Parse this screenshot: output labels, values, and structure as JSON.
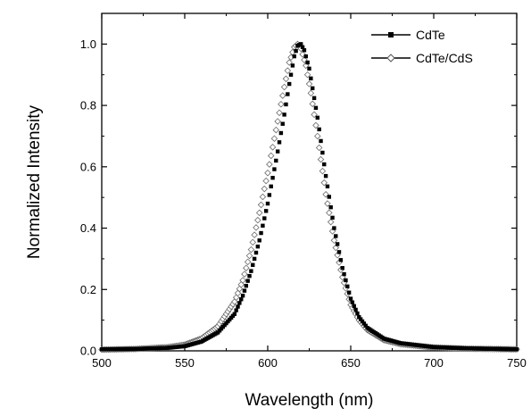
{
  "chart_data": {
    "type": "scatter",
    "title": "",
    "xlabel": "Wavelength (nm)",
    "ylabel": "Normalized Intensity",
    "xlim": [
      500,
      750
    ],
    "ylim": [
      0.0,
      1.1
    ],
    "x_ticks": [
      "500",
      "550",
      "600",
      "650",
      "700",
      "750"
    ],
    "y_ticks": [
      "0.0",
      "0.2",
      "0.4",
      "0.6",
      "0.8",
      "1.0"
    ],
    "grid": false,
    "legend_position": "top-right",
    "series": [
      {
        "name": "CdTe",
        "marker": "filled-square",
        "color": "#000000",
        "points": [
          [
            500,
            0.005
          ],
          [
            520,
            0.006
          ],
          [
            540,
            0.01
          ],
          [
            550,
            0.015
          ],
          [
            560,
            0.03
          ],
          [
            570,
            0.06
          ],
          [
            580,
            0.12
          ],
          [
            585,
            0.18
          ],
          [
            590,
            0.26
          ],
          [
            595,
            0.36
          ],
          [
            600,
            0.48
          ],
          [
            605,
            0.62
          ],
          [
            610,
            0.77
          ],
          [
            613,
            0.87
          ],
          [
            616,
            0.96
          ],
          [
            618,
            0.995
          ],
          [
            620,
            1.0
          ],
          [
            622,
            0.98
          ],
          [
            625,
            0.92
          ],
          [
            630,
            0.76
          ],
          [
            635,
            0.57
          ],
          [
            640,
            0.4
          ],
          [
            645,
            0.27
          ],
          [
            650,
            0.17
          ],
          [
            655,
            0.11
          ],
          [
            660,
            0.075
          ],
          [
            670,
            0.04
          ],
          [
            680,
            0.025
          ],
          [
            700,
            0.012
          ],
          [
            720,
            0.008
          ],
          [
            750,
            0.005
          ]
        ]
      },
      {
        "name": "CdTe/CdS",
        "marker": "open-diamond",
        "color": "#808080",
        "points": [
          [
            500,
            0.004
          ],
          [
            520,
            0.006
          ],
          [
            540,
            0.012
          ],
          [
            550,
            0.02
          ],
          [
            560,
            0.04
          ],
          [
            570,
            0.08
          ],
          [
            580,
            0.16
          ],
          [
            585,
            0.23
          ],
          [
            590,
            0.33
          ],
          [
            595,
            0.45
          ],
          [
            600,
            0.58
          ],
          [
            605,
            0.72
          ],
          [
            610,
            0.86
          ],
          [
            613,
            0.94
          ],
          [
            616,
            0.99
          ],
          [
            618,
            1.0
          ],
          [
            620,
            0.985
          ],
          [
            623,
            0.93
          ],
          [
            626,
            0.84
          ],
          [
            630,
            0.7
          ],
          [
            635,
            0.51
          ],
          [
            640,
            0.36
          ],
          [
            645,
            0.24
          ],
          [
            650,
            0.15
          ],
          [
            655,
            0.1
          ],
          [
            660,
            0.068
          ],
          [
            670,
            0.035
          ],
          [
            680,
            0.022
          ],
          [
            700,
            0.011
          ],
          [
            720,
            0.007
          ],
          [
            750,
            0.005
          ]
        ]
      }
    ]
  }
}
